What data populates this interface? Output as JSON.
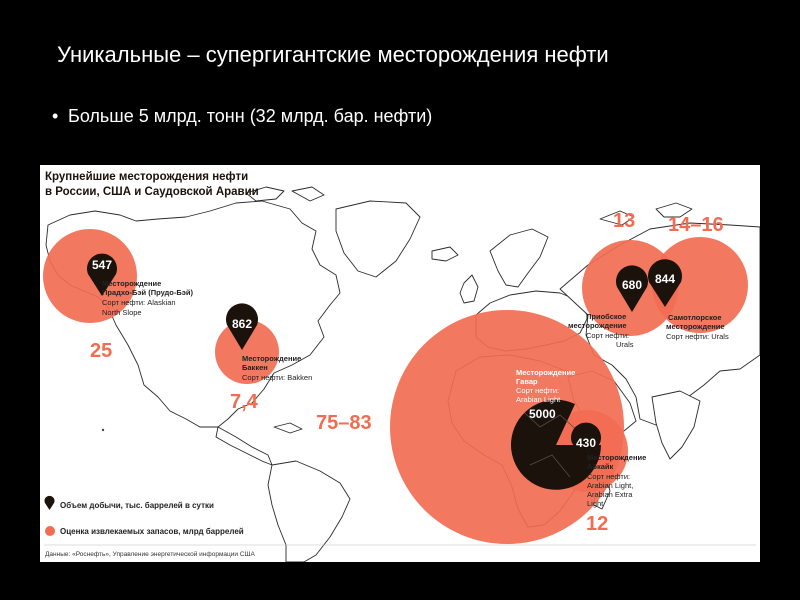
{
  "slide": {
    "title": "Уникальные – супергигантские месторождения нефти",
    "bullet_marker": "•",
    "bullet": "Больше 5 млрд. тонн (32 млрд. бар. нефти)"
  },
  "map": {
    "title_line1": "Крупнейшие месторождения нефти",
    "title_line2": "в России, США и Саудовской Аравии",
    "colors": {
      "reserves": "#f26c52",
      "production": "#1b120c",
      "land": "#ffffff",
      "border": "#222222",
      "background": "#ffffff"
    },
    "fields": [
      {
        "id": "prudhoe",
        "production": "547",
        "reserves": "25",
        "lines": [
          "Месторождение",
          "Прадхо-Бэй (Прудо-Бэй)",
          "Сорт нефти: Alaskian",
          "North Slope"
        ]
      },
      {
        "id": "bakken",
        "production": "862",
        "reserves": "7,4",
        "lines": [
          "Месторождение",
          "Баккен",
          "Сорт нефти: Bakken"
        ]
      },
      {
        "id": "ghawar",
        "production": "5000",
        "reserves": "75–83",
        "lines": [
          "Месторождение",
          "Гавар",
          "Сорт нефти:",
          "Arabian Light"
        ]
      },
      {
        "id": "abqaiq",
        "production": "430",
        "reserves": "12",
        "lines": [
          "Месторождение",
          "Абкайк",
          "Сорт нефти:",
          "Arabian Light,",
          "Arabian Extra",
          "Light"
        ]
      },
      {
        "id": "priobskoye",
        "production": "680",
        "reserves": "13",
        "lines": [
          "Приобское",
          "месторождение",
          "Сорт нефти:",
          "Urals"
        ]
      },
      {
        "id": "samotlor",
        "production": "844",
        "reserves": "14–16",
        "lines": [
          "Самотлорское",
          "месторождение",
          "Сорт нефти: Urals"
        ]
      }
    ],
    "legend": {
      "production": "Объем добычи, тыс. баррелей в сутки",
      "reserves": "Оценка извлекаемых запасов, млрд баррелей"
    },
    "source": "Данные: «Роснефть», Управление энергетической информации США"
  }
}
